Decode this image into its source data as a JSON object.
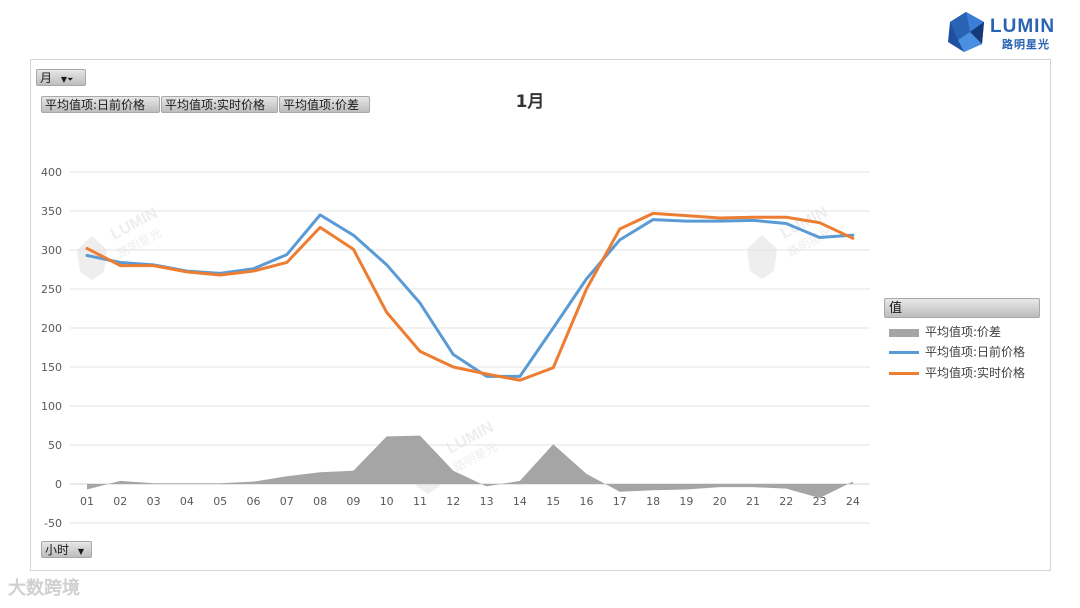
{
  "logo": {
    "text": "LUMIN",
    "subtext": "路明星光"
  },
  "watermark": {
    "text": "LUMIN",
    "subtext": "路明星光",
    "bottom_text": "大数跨境"
  },
  "filters": {
    "month_button": "月",
    "value_buttons": [
      "平均值项:日前价格",
      "平均值项:实时价格",
      "平均值项:价差"
    ],
    "axis_field_button": "小时"
  },
  "legend": {
    "header": "值",
    "items": [
      {
        "label": "平均值项:价差",
        "color": "#a5a5a5",
        "kind": "area"
      },
      {
        "label": "平均值项:日前价格",
        "color": "#5b9bd5",
        "kind": "line"
      },
      {
        "label": "平均值项:实时价格",
        "color": "#ed7d31",
        "kind": "line"
      }
    ]
  },
  "chart_data": {
    "type": "line",
    "title": "1月",
    "xlabel": "",
    "ylabel": "",
    "ylim": [
      -50,
      400
    ],
    "yticks": [
      -50,
      0,
      50,
      100,
      150,
      200,
      250,
      300,
      350,
      400
    ],
    "grid": true,
    "legend_position": "right",
    "categories": [
      "01",
      "02",
      "03",
      "04",
      "05",
      "06",
      "07",
      "08",
      "09",
      "10",
      "11",
      "12",
      "13",
      "14",
      "15",
      "16",
      "17",
      "18",
      "19",
      "20",
      "21",
      "22",
      "23",
      "24"
    ],
    "series": [
      {
        "name": "平均值项:价差",
        "kind": "area",
        "color": "#a5a5a5",
        "values": [
          -7,
          4,
          1,
          1,
          1,
          3,
          10,
          15,
          17,
          61,
          62,
          17,
          -3,
          4,
          51,
          13,
          -10,
          -8,
          -7,
          -4,
          -4,
          -6,
          -18,
          3
        ]
      },
      {
        "name": "平均值项:日前价格",
        "kind": "line",
        "color": "#5b9bd5",
        "values": [
          293,
          284,
          281,
          273,
          270,
          276,
          294,
          345,
          319,
          281,
          232,
          166,
          138,
          138,
          200,
          263,
          313,
          339,
          337,
          337,
          338,
          334,
          316,
          319
        ]
      },
      {
        "name": "平均值项:实时价格",
        "kind": "line",
        "color": "#ed7d31",
        "values": [
          302,
          280,
          280,
          272,
          268,
          273,
          284,
          329,
          301,
          220,
          170,
          150,
          141,
          133,
          149,
          250,
          327,
          347,
          344,
          341,
          342,
          342,
          335,
          315
        ]
      }
    ]
  }
}
